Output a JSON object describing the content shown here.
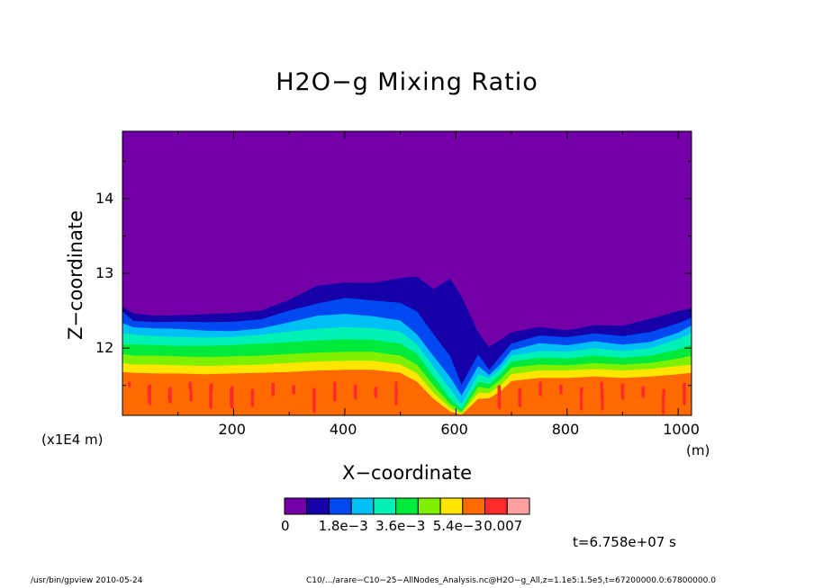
{
  "title": "H2O−g Mixing Ratio",
  "xlabel": "X−coordinate",
  "ylabel": "Z−coordinate",
  "x_scale_note": "(x1E4 m)",
  "x_unit": "(m)",
  "time_label": "t=6.758e+07 s",
  "footer_left": "/usr/bin/gpview   2010-05-24",
  "footer_right": "C10/.../arare−C10−25−AllNodes_Analysis.nc@H2O−g_All,z=1.1e5:1.5e5,t=67200000.0:67800000.0",
  "colors": [
    "#7300a6",
    "#1600a8",
    "#0048f0",
    "#00bff5",
    "#00f0b5",
    "#00ea3c",
    "#7ef000",
    "#ffe600",
    "#ff6a00",
    "#ff2a2a",
    "#ff9f9f"
  ],
  "chart_data": {
    "type": "heatmap",
    "title": "H2O−g Mixing Ratio",
    "xlabel": "X−coordinate",
    "ylabel": "Z−coordinate",
    "xlim": [
      0,
      1024
    ],
    "ylim": [
      11.1,
      14.9
    ],
    "x_ticks": [
      200,
      400,
      600,
      800,
      1000
    ],
    "y_ticks": [
      12,
      13,
      14
    ],
    "colorbar": {
      "levels": [
        "0",
        "1.8e−3",
        "3.6e−3",
        "5.4e−3",
        "0.007"
      ],
      "level_values": [
        0,
        0.0018,
        0.0036,
        0.0054,
        0.007
      ],
      "bins": 11
    },
    "boundaries": {
      "x": [
        0,
        20,
        60,
        100,
        150,
        200,
        250,
        300,
        350,
        400,
        450,
        500,
        530,
        560,
        590,
        610,
        640,
        660,
        680,
        700,
        750,
        800,
        850,
        900,
        950,
        1000,
        1024
      ],
      "top_dry": [
        12.55,
        12.48,
        12.45,
        12.44,
        12.44,
        12.45,
        12.5,
        12.66,
        12.85,
        12.88,
        12.86,
        12.92,
        12.95,
        12.8,
        12.95,
        12.7,
        12.2,
        12.0,
        12.1,
        12.22,
        12.3,
        12.25,
        12.3,
        12.28,
        12.38,
        12.5,
        12.55
      ],
      "level_1": [
        12.5,
        12.38,
        12.35,
        12.34,
        12.33,
        12.35,
        12.4,
        12.52,
        12.6,
        12.66,
        12.62,
        12.6,
        12.5,
        12.2,
        11.9,
        11.5,
        11.9,
        11.7,
        11.9,
        12.08,
        12.18,
        12.14,
        12.18,
        12.15,
        12.22,
        12.35,
        12.42
      ],
      "level_2": [
        12.35,
        12.28,
        12.25,
        12.24,
        12.23,
        12.24,
        12.28,
        12.35,
        12.42,
        12.44,
        12.42,
        12.38,
        12.2,
        11.9,
        11.6,
        11.35,
        11.75,
        11.65,
        11.8,
        11.98,
        12.06,
        12.02,
        12.08,
        12.05,
        12.1,
        12.22,
        12.3
      ],
      "level_3": [
        12.2,
        12.18,
        12.16,
        12.15,
        12.14,
        12.15,
        12.18,
        12.22,
        12.26,
        12.28,
        12.27,
        12.22,
        12.05,
        11.75,
        11.45,
        11.25,
        11.65,
        11.6,
        11.72,
        11.9,
        11.96,
        11.95,
        12.0,
        11.96,
        12.0,
        12.12,
        12.2
      ],
      "level_4": [
        12.05,
        12.05,
        12.04,
        12.03,
        12.03,
        12.04,
        12.06,
        12.08,
        12.1,
        12.12,
        12.11,
        12.06,
        11.92,
        11.62,
        11.32,
        11.18,
        11.55,
        11.52,
        11.65,
        11.82,
        11.87,
        11.86,
        11.9,
        11.87,
        11.9,
        11.98,
        12.05
      ],
      "level_5": [
        11.92,
        11.9,
        11.9,
        11.89,
        11.88,
        11.89,
        11.9,
        11.92,
        11.94,
        11.95,
        11.95,
        11.9,
        11.78,
        11.5,
        11.25,
        11.15,
        11.48,
        11.46,
        11.58,
        11.74,
        11.78,
        11.77,
        11.8,
        11.78,
        11.8,
        11.86,
        11.9
      ],
      "level_6": [
        11.8,
        11.78,
        11.78,
        11.77,
        11.76,
        11.77,
        11.78,
        11.8,
        11.82,
        11.83,
        11.83,
        11.78,
        11.66,
        11.4,
        11.2,
        11.12,
        11.4,
        11.4,
        11.5,
        11.65,
        11.7,
        11.7,
        11.72,
        11.7,
        11.72,
        11.76,
        11.78
      ],
      "level_7": [
        11.68,
        11.67,
        11.66,
        11.66,
        11.65,
        11.66,
        11.67,
        11.68,
        11.7,
        11.71,
        11.71,
        11.67,
        11.55,
        11.32,
        11.15,
        11.11,
        11.32,
        11.33,
        11.42,
        11.56,
        11.6,
        11.6,
        11.62,
        11.6,
        11.62,
        11.65,
        11.67
      ],
      "level_8": [
        11.56,
        11.56,
        11.55,
        11.55,
        11.55,
        11.55,
        11.56,
        11.56,
        11.58,
        11.58,
        11.58,
        11.55,
        11.45,
        11.25,
        11.12,
        11.1,
        11.25,
        11.26,
        11.34,
        11.46,
        11.5,
        11.5,
        11.52,
        11.5,
        11.52,
        11.55,
        11.56
      ]
    }
  }
}
